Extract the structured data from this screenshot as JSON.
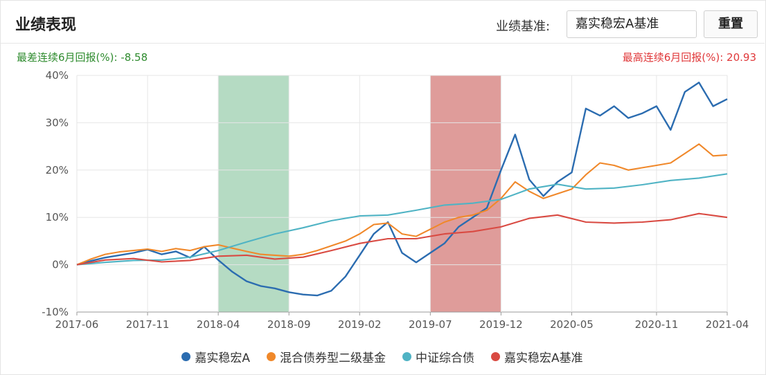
{
  "header": {
    "title": "业绩表现",
    "benchmark_label": "业绩基准:",
    "benchmark_value": "嘉实稳宏A基准",
    "reset_label": "重置"
  },
  "stats": {
    "worst": "最差连续6月回报(%): -8.58",
    "best": "最高连续6月回报(%): 20.93"
  },
  "chart_data": {
    "type": "line",
    "y_unit": "%",
    "ylim": [
      -10,
      40
    ],
    "y_ticks": [
      "-10%",
      "0%",
      "10%",
      "20%",
      "30%",
      "40%"
    ],
    "x_ticks": [
      "2017-06",
      "2017-11",
      "2018-04",
      "2018-09",
      "2019-02",
      "2019-07",
      "2019-12",
      "2020-05",
      "2020-11",
      "2021-04"
    ],
    "x_range": [
      "2017-06",
      "2021-04"
    ],
    "grid": true,
    "legend_position": "bottom",
    "highlight_periods": [
      {
        "label": "worst",
        "start": "2018-04",
        "end": "2018-09",
        "color": "#a8d5b8"
      },
      {
        "label": "best",
        "start": "2019-07",
        "end": "2019-12",
        "color": "#d98b88"
      }
    ],
    "series": [
      {
        "name": "嘉实稳宏A",
        "color": "#2b6cb0",
        "points": [
          [
            "2017-06",
            0
          ],
          [
            "2017-07",
            0.8
          ],
          [
            "2017-08",
            1.5
          ],
          [
            "2017-09",
            2.0
          ],
          [
            "2017-10",
            2.5
          ],
          [
            "2017-11",
            3.2
          ],
          [
            "2017-12",
            2.2
          ],
          [
            "2018-01",
            2.8
          ],
          [
            "2018-02",
            1.5
          ],
          [
            "2018-03",
            3.8
          ],
          [
            "2018-04",
            1.0
          ],
          [
            "2018-05",
            -1.5
          ],
          [
            "2018-06",
            -3.5
          ],
          [
            "2018-07",
            -4.5
          ],
          [
            "2018-08",
            -5.0
          ],
          [
            "2018-09",
            -5.8
          ],
          [
            "2018-10",
            -6.3
          ],
          [
            "2018-11",
            -6.5
          ],
          [
            "2018-12",
            -5.5
          ],
          [
            "2019-01",
            -2.5
          ],
          [
            "2019-02",
            2.0
          ],
          [
            "2019-03",
            6.5
          ],
          [
            "2019-04",
            9.0
          ],
          [
            "2019-05",
            2.5
          ],
          [
            "2019-06",
            0.5
          ],
          [
            "2019-07",
            2.5
          ],
          [
            "2019-08",
            4.5
          ],
          [
            "2019-09",
            8.0
          ],
          [
            "2019-10",
            10.0
          ],
          [
            "2019-11",
            12.0
          ],
          [
            "2019-12",
            20.0
          ],
          [
            "2020-01",
            27.5
          ],
          [
            "2020-02",
            18.0
          ],
          [
            "2020-03",
            14.5
          ],
          [
            "2020-04",
            17.5
          ],
          [
            "2020-05",
            19.5
          ],
          [
            "2020-06",
            33.0
          ],
          [
            "2020-07",
            31.5
          ],
          [
            "2020-08",
            33.5
          ],
          [
            "2020-09",
            31.0
          ],
          [
            "2020-10",
            32.0
          ],
          [
            "2020-11",
            33.5
          ],
          [
            "2020-12",
            28.5
          ],
          [
            "2021-01",
            36.5
          ],
          [
            "2021-02",
            38.5
          ],
          [
            "2021-03",
            33.5
          ],
          [
            "2021-04",
            35.0
          ]
        ]
      },
      {
        "name": "混合债券型二级基金",
        "color": "#f0882a",
        "points": [
          [
            "2017-06",
            0
          ],
          [
            "2017-07",
            1.2
          ],
          [
            "2017-08",
            2.2
          ],
          [
            "2017-09",
            2.7
          ],
          [
            "2017-10",
            3.0
          ],
          [
            "2017-11",
            3.3
          ],
          [
            "2017-12",
            2.8
          ],
          [
            "2018-01",
            3.4
          ],
          [
            "2018-02",
            3.0
          ],
          [
            "2018-03",
            3.8
          ],
          [
            "2018-04",
            4.2
          ],
          [
            "2018-05",
            3.5
          ],
          [
            "2018-06",
            2.8
          ],
          [
            "2018-07",
            2.2
          ],
          [
            "2018-08",
            2.0
          ],
          [
            "2018-09",
            1.8
          ],
          [
            "2018-10",
            2.2
          ],
          [
            "2018-11",
            3.0
          ],
          [
            "2018-12",
            4.0
          ],
          [
            "2019-01",
            5.0
          ],
          [
            "2019-02",
            6.5
          ],
          [
            "2019-03",
            8.5
          ],
          [
            "2019-04",
            8.8
          ],
          [
            "2019-05",
            6.5
          ],
          [
            "2019-06",
            6.0
          ],
          [
            "2019-07",
            7.5
          ],
          [
            "2019-08",
            9.0
          ],
          [
            "2019-09",
            10.0
          ],
          [
            "2019-10",
            10.5
          ],
          [
            "2019-11",
            11.5
          ],
          [
            "2019-12",
            14.0
          ],
          [
            "2020-01",
            17.5
          ],
          [
            "2020-02",
            15.5
          ],
          [
            "2020-03",
            14.0
          ],
          [
            "2020-04",
            15.0
          ],
          [
            "2020-05",
            16.0
          ],
          [
            "2020-06",
            19.0
          ],
          [
            "2020-07",
            21.5
          ],
          [
            "2020-08",
            21.0
          ],
          [
            "2020-09",
            20.0
          ],
          [
            "2020-10",
            20.5
          ],
          [
            "2020-11",
            21.0
          ],
          [
            "2020-12",
            21.5
          ],
          [
            "2021-01",
            23.5
          ],
          [
            "2021-02",
            25.5
          ],
          [
            "2021-03",
            23.0
          ],
          [
            "2021-04",
            23.2
          ]
        ]
      },
      {
        "name": "中证综合债",
        "color": "#4fb3c4",
        "points": [
          [
            "2017-06",
            0
          ],
          [
            "2017-08",
            0.5
          ],
          [
            "2017-10",
            0.9
          ],
          [
            "2017-12",
            1.0
          ],
          [
            "2018-02",
            1.6
          ],
          [
            "2018-04",
            3.0
          ],
          [
            "2018-06",
            4.8
          ],
          [
            "2018-08",
            6.5
          ],
          [
            "2018-10",
            7.8
          ],
          [
            "2018-12",
            9.3
          ],
          [
            "2019-02",
            10.3
          ],
          [
            "2019-04",
            10.5
          ],
          [
            "2019-06",
            11.5
          ],
          [
            "2019-08",
            12.6
          ],
          [
            "2019-10",
            13.0
          ],
          [
            "2019-12",
            13.8
          ],
          [
            "2020-02",
            16.0
          ],
          [
            "2020-04",
            17.0
          ],
          [
            "2020-06",
            16.0
          ],
          [
            "2020-08",
            16.2
          ],
          [
            "2020-10",
            16.9
          ],
          [
            "2020-12",
            17.8
          ],
          [
            "2021-02",
            18.3
          ],
          [
            "2021-04",
            19.2
          ]
        ]
      },
      {
        "name": "嘉实稳宏A基准",
        "color": "#d94a42",
        "points": [
          [
            "2017-06",
            0
          ],
          [
            "2017-08",
            1.0
          ],
          [
            "2017-10",
            1.3
          ],
          [
            "2017-12",
            0.6
          ],
          [
            "2018-02",
            0.9
          ],
          [
            "2018-04",
            1.8
          ],
          [
            "2018-06",
            2.0
          ],
          [
            "2018-08",
            1.2
          ],
          [
            "2018-10",
            1.6
          ],
          [
            "2018-12",
            3.0
          ],
          [
            "2019-02",
            4.5
          ],
          [
            "2019-04",
            5.5
          ],
          [
            "2019-06",
            5.5
          ],
          [
            "2019-08",
            6.5
          ],
          [
            "2019-10",
            7.0
          ],
          [
            "2019-12",
            8.0
          ],
          [
            "2020-02",
            9.8
          ],
          [
            "2020-04",
            10.5
          ],
          [
            "2020-06",
            9.0
          ],
          [
            "2020-08",
            8.8
          ],
          [
            "2020-10",
            9.0
          ],
          [
            "2020-12",
            9.5
          ],
          [
            "2021-02",
            10.8
          ],
          [
            "2021-04",
            10.0
          ]
        ]
      }
    ]
  }
}
